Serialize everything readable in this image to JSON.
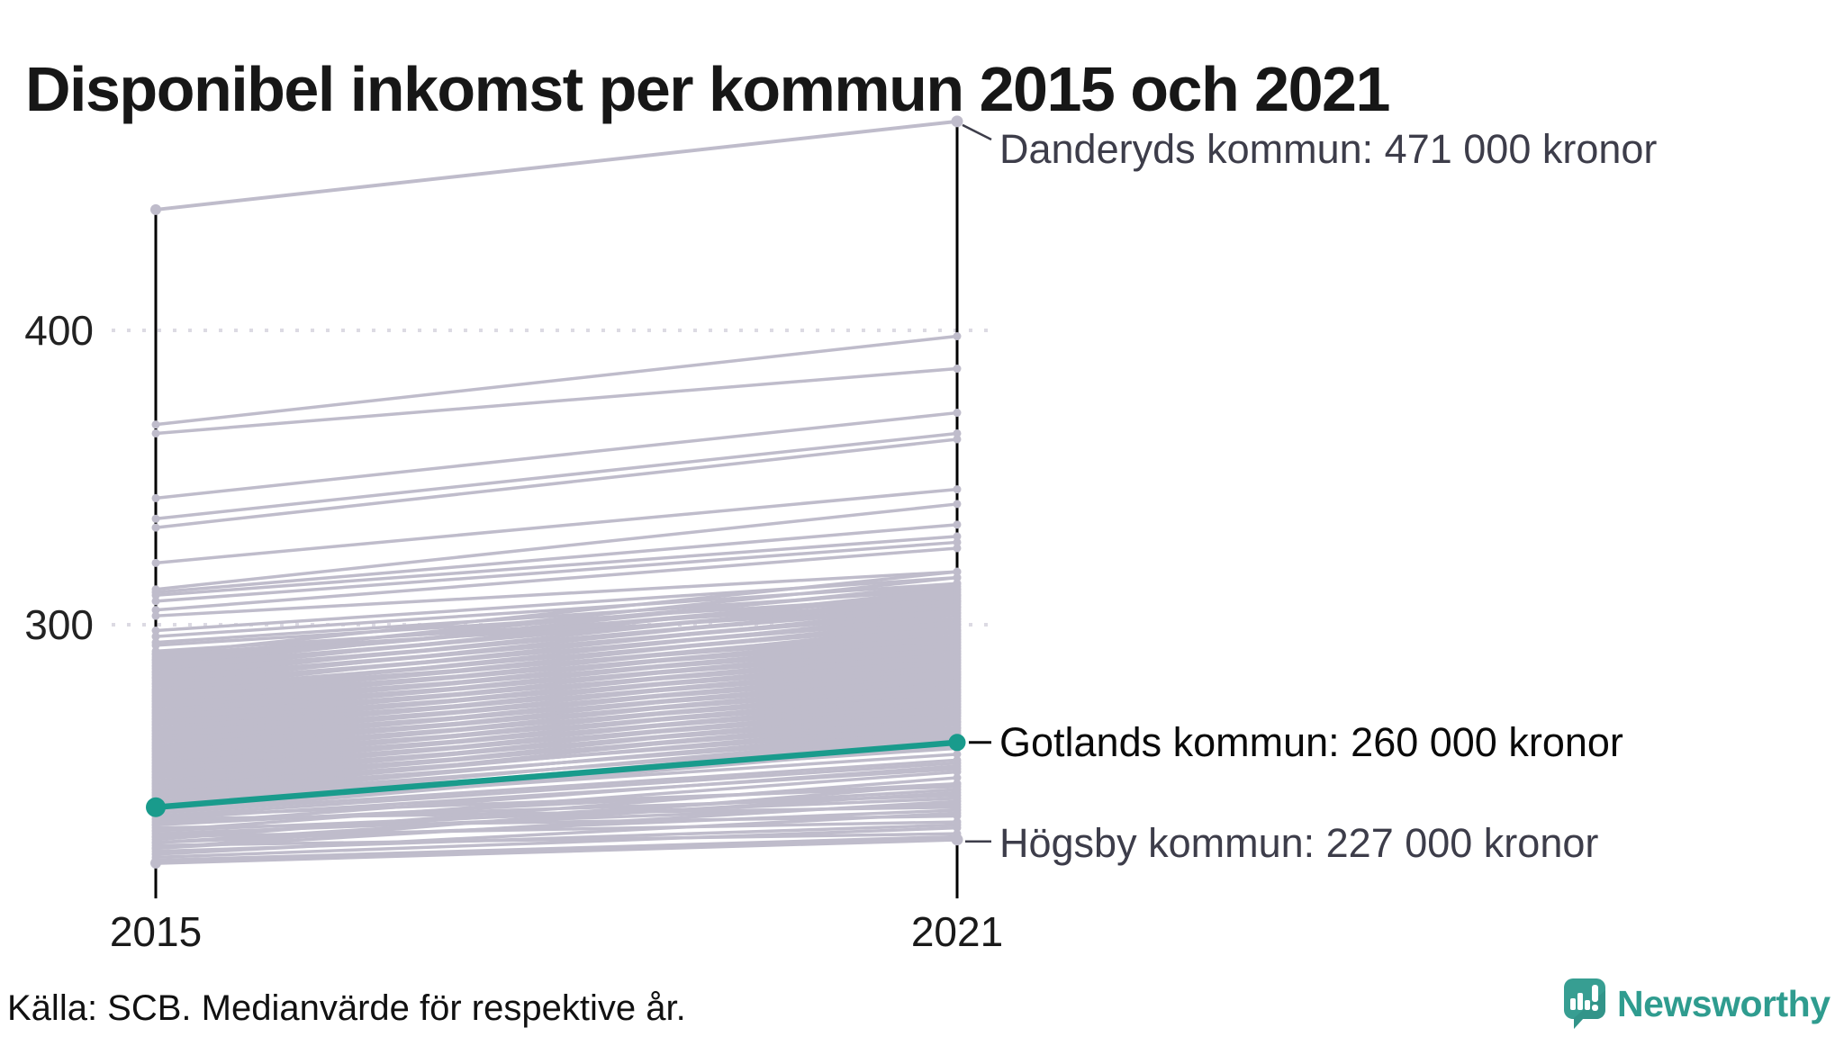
{
  "title": "Disponibel inkomst per kommun 2015 och 2021",
  "source": "Källa: SCB. Medianvärde för respektive år.",
  "branding": {
    "name": "Newsworthy",
    "icon": "newsworthy-speech-bubble-chart-icon"
  },
  "colors": {
    "accent_teal": "#199b8c",
    "line_gray": "#bfbccb",
    "axis_black": "#000000",
    "grid_dots": "#dcdae3",
    "annotation_dark": "#3d3d4a",
    "annotation_black": "#0a0a0a",
    "brand_teal": "#2f9c8f"
  },
  "chart_data": {
    "type": "line",
    "subtype": "slope",
    "title": "Disponibel inkomst per kommun 2015 och 2021",
    "x": [
      2015,
      2021
    ],
    "x_labels": [
      "2015",
      "2021"
    ],
    "yticks": [
      400,
      300
    ],
    "ytick_labels": [
      "400",
      "300"
    ],
    "ylim": [
      215,
      480
    ],
    "unit_hint": "tusen kronor (värden i 1000-tal)",
    "grid": "dotted horizontal at 300 and 400",
    "legend_position": "none (direct labels right of 2021 axis)",
    "annotated_series": [
      {
        "name": "Danderyds kommun",
        "values": [
          441,
          471
        ],
        "label": "Danderyds kommun: 471 000 kronor",
        "highlight": false
      },
      {
        "name": "Gotlands kommun",
        "values": [
          238,
          260
        ],
        "label": "Gotlands kommun: 260 000 kronor",
        "highlight": true
      },
      {
        "name": "Högsby kommun",
        "values": [
          219,
          227
        ],
        "label": "Högsby kommun: 227 000 kronor",
        "highlight": false
      }
    ],
    "background_series": [
      [
        368,
        398
      ],
      [
        365,
        387
      ],
      [
        343,
        372
      ],
      [
        336,
        365
      ],
      [
        333,
        363
      ],
      [
        321,
        346
      ],
      [
        312,
        341
      ],
      [
        311,
        334
      ],
      [
        310,
        330
      ],
      [
        308,
        328
      ],
      [
        305,
        326
      ],
      [
        303,
        318
      ],
      [
        298,
        316
      ],
      [
        296,
        314
      ],
      [
        294,
        312
      ],
      [
        293,
        310
      ],
      [
        291,
        308
      ],
      [
        290,
        306
      ],
      [
        220,
        228
      ],
      [
        221,
        231
      ],
      [
        222,
        236
      ],
      [
        223,
        232
      ],
      [
        224,
        240
      ],
      [
        224,
        246
      ],
      [
        225,
        229
      ],
      [
        226,
        243
      ],
      [
        226,
        237
      ],
      [
        227,
        248
      ],
      [
        228,
        233
      ],
      [
        228,
        244
      ],
      [
        229,
        239
      ],
      [
        230,
        250
      ],
      [
        230,
        241
      ],
      [
        231,
        235
      ],
      [
        232,
        246
      ],
      [
        232,
        252
      ],
      [
        233,
        242
      ],
      [
        234,
        238
      ],
      [
        234,
        251
      ],
      [
        235,
        245
      ],
      [
        235,
        253
      ],
      [
        236,
        259
      ],
      [
        236,
        254
      ],
      [
        237,
        260
      ],
      [
        238,
        256
      ],
      [
        238,
        261
      ],
      [
        239,
        263
      ],
      [
        240,
        258
      ],
      [
        240,
        262
      ],
      [
        241,
        265
      ],
      [
        242,
        270
      ],
      [
        242,
        264
      ],
      [
        243,
        267
      ],
      [
        244,
        272
      ],
      [
        244,
        266
      ],
      [
        245,
        269
      ],
      [
        246,
        274
      ],
      [
        246,
        268
      ],
      [
        247,
        271
      ],
      [
        248,
        276
      ],
      [
        248,
        270
      ],
      [
        249,
        273
      ],
      [
        250,
        278
      ],
      [
        250,
        272
      ],
      [
        251,
        275
      ],
      [
        252,
        280
      ],
      [
        252,
        274
      ],
      [
        253,
        277
      ],
      [
        254,
        282
      ],
      [
        254,
        276
      ],
      [
        255,
        279
      ],
      [
        256,
        284
      ],
      [
        256,
        278
      ],
      [
        257,
        281
      ],
      [
        258,
        286
      ],
      [
        258,
        280
      ],
      [
        259,
        283
      ],
      [
        260,
        288
      ],
      [
        260,
        282
      ],
      [
        261,
        285
      ],
      [
        262,
        290
      ],
      [
        262,
        284
      ],
      [
        263,
        287
      ],
      [
        264,
        292
      ],
      [
        264,
        286
      ],
      [
        265,
        289
      ],
      [
        266,
        294
      ],
      [
        266,
        288
      ],
      [
        267,
        291
      ],
      [
        268,
        296
      ],
      [
        268,
        290
      ],
      [
        269,
        293
      ],
      [
        270,
        298
      ],
      [
        270,
        292
      ],
      [
        271,
        295
      ],
      [
        272,
        300
      ],
      [
        272,
        294
      ],
      [
        273,
        297
      ],
      [
        274,
        302
      ],
      [
        274,
        296
      ],
      [
        275,
        299
      ],
      [
        276,
        304
      ],
      [
        276,
        298
      ],
      [
        277,
        301
      ],
      [
        278,
        306
      ],
      [
        278,
        300
      ],
      [
        279,
        303
      ],
      [
        280,
        308
      ],
      [
        280,
        302
      ],
      [
        281,
        305
      ],
      [
        282,
        310
      ],
      [
        282,
        304
      ],
      [
        283,
        307
      ],
      [
        284,
        312
      ],
      [
        284,
        306
      ],
      [
        285,
        309
      ],
      [
        286,
        314
      ],
      [
        286,
        308
      ],
      [
        287,
        311
      ],
      [
        288,
        316
      ],
      [
        288,
        310
      ],
      [
        289,
        313
      ],
      [
        290,
        318
      ],
      [
        239,
        259
      ],
      [
        241,
        261
      ],
      [
        243,
        263
      ],
      [
        245,
        265
      ],
      [
        247,
        267
      ],
      [
        249,
        269
      ],
      [
        251,
        271
      ],
      [
        253,
        273
      ],
      [
        255,
        275
      ],
      [
        257,
        277
      ],
      [
        259,
        279
      ],
      [
        261,
        281
      ],
      [
        263,
        283
      ],
      [
        265,
        285
      ],
      [
        267,
        287
      ],
      [
        269,
        289
      ],
      [
        271,
        291
      ],
      [
        273,
        293
      ],
      [
        275,
        295
      ],
      [
        277,
        297
      ]
    ]
  }
}
